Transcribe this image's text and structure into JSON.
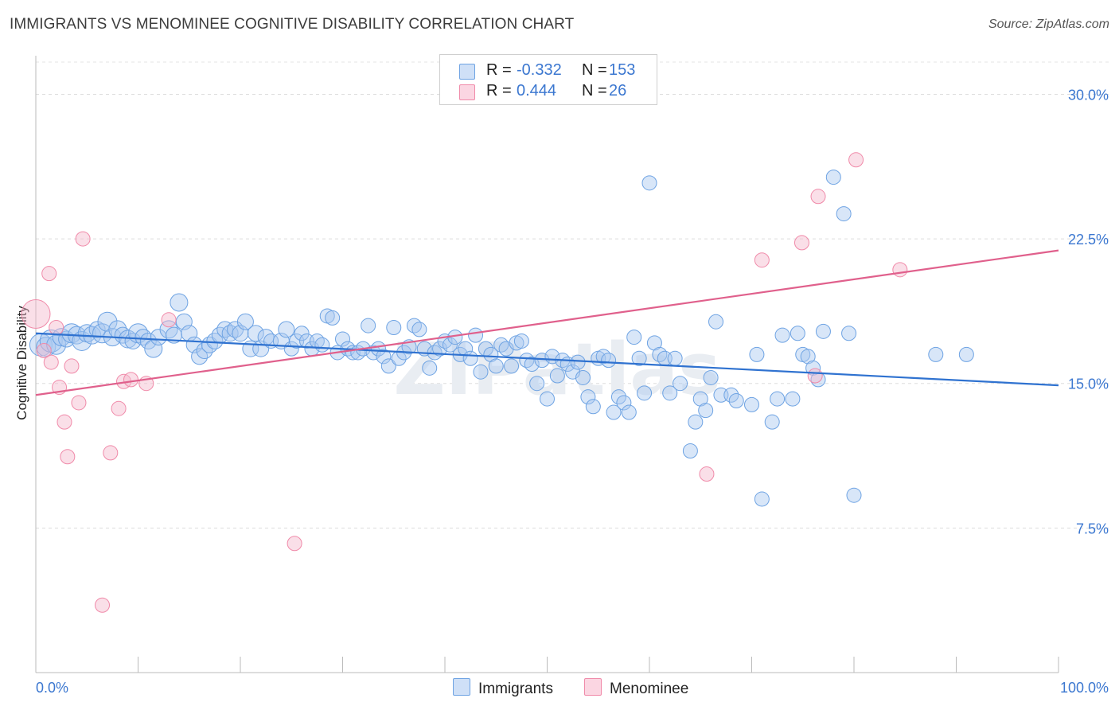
{
  "title": "IMMIGRANTS VS MENOMINEE COGNITIVE DISABILITY CORRELATION CHART",
  "source": "Source: ZipAtlas.com",
  "watermark": "ZIPatlas",
  "stats": [
    {
      "r_label": "R =",
      "r": "-0.332",
      "n_label": "N =",
      "n": "153",
      "color": "#a8c8f0"
    },
    {
      "r_label": "R =",
      "r": "0.444",
      "n_label": "N =",
      "n": "26",
      "color": "#f5b8cb"
    }
  ],
  "legend": [
    {
      "label": "Immigrants",
      "color": "#a8c8f0"
    },
    {
      "label": "Menominee",
      "color": "#f5b8cb"
    }
  ],
  "chart_data": {
    "type": "scatter",
    "title": "IMMIGRANTS VS MENOMINEE COGNITIVE DISABILITY CORRELATION CHART",
    "xlabel": "",
    "ylabel": "Cognitive Disability",
    "xlim": [
      0,
      100
    ],
    "ylim": [
      0,
      32
    ],
    "x_tick_labels": [
      "0.0%",
      "100.0%"
    ],
    "y_ticks": [
      7.5,
      15.0,
      22.5,
      30.0
    ],
    "y_tick_labels": [
      "7.5%",
      "15.0%",
      "22.5%",
      "30.0%"
    ],
    "grid": "horizontal dashed",
    "legend_position": "bottom-center",
    "series": [
      {
        "name": "Immigrants",
        "color": "#6ea3e3",
        "trend": {
          "x0": 0,
          "y0": 17.6,
          "x1": 100,
          "y1": 14.9,
          "color": "#2f72d0"
        },
        "points": [
          [
            0.5,
            17.0,
            14
          ],
          [
            1,
            16.9,
            12
          ],
          [
            1.5,
            17.2,
            14
          ],
          [
            2,
            17.0,
            12
          ],
          [
            2.5,
            17.4,
            11
          ],
          [
            3,
            17.3,
            10
          ],
          [
            3.5,
            17.6,
            12
          ],
          [
            4,
            17.5,
            11
          ],
          [
            4.5,
            17.2,
            12
          ],
          [
            5,
            17.6,
            11
          ],
          [
            5.5,
            17.5,
            11
          ],
          [
            6,
            17.8,
            10
          ],
          [
            6.5,
            17.6,
            12
          ],
          [
            7,
            18.2,
            12
          ],
          [
            7.5,
            17.4,
            11
          ],
          [
            8,
            17.8,
            11
          ],
          [
            8.5,
            17.5,
            10
          ],
          [
            9,
            17.3,
            11
          ],
          [
            9.5,
            17.2,
            10
          ],
          [
            10,
            17.6,
            12
          ],
          [
            10.5,
            17.4,
            10
          ],
          [
            11,
            17.2,
            10
          ],
          [
            11.5,
            16.8,
            11
          ],
          [
            12,
            17.4,
            10
          ],
          [
            13,
            17.8,
            11
          ],
          [
            13.5,
            17.5,
            10
          ],
          [
            14,
            19.2,
            11
          ],
          [
            14.5,
            18.2,
            10
          ],
          [
            15,
            17.6,
            10
          ],
          [
            15.5,
            17.0,
            10
          ],
          [
            16,
            16.4,
            10
          ],
          [
            16.5,
            16.7,
            10
          ],
          [
            17,
            17.0,
            10
          ],
          [
            17.5,
            17.2,
            10
          ],
          [
            18,
            17.5,
            10
          ],
          [
            18.5,
            17.8,
            10
          ],
          [
            19,
            17.6,
            10
          ],
          [
            19.5,
            17.8,
            10
          ],
          [
            20,
            17.6,
            10
          ],
          [
            20.5,
            18.2,
            10
          ],
          [
            21,
            16.8,
            10
          ],
          [
            21.5,
            17.6,
            10
          ],
          [
            22,
            16.8,
            10
          ],
          [
            22.5,
            17.4,
            10
          ],
          [
            23,
            17.2,
            9
          ],
          [
            24,
            17.2,
            10
          ],
          [
            24.5,
            17.8,
            10
          ],
          [
            25,
            16.8,
            9
          ],
          [
            25.5,
            17.2,
            9
          ],
          [
            26,
            17.6,
            9
          ],
          [
            26.5,
            17.2,
            9
          ],
          [
            27,
            16.8,
            9
          ],
          [
            27.5,
            17.2,
            9
          ],
          [
            28,
            17.0,
            9
          ],
          [
            28.5,
            18.5,
            9
          ],
          [
            29,
            18.4,
            9
          ],
          [
            29.5,
            16.6,
            9
          ],
          [
            30,
            17.3,
            9
          ],
          [
            30.5,
            16.8,
            9
          ],
          [
            31,
            16.6,
            9
          ],
          [
            31.5,
            16.6,
            9
          ],
          [
            32,
            16.8,
            9
          ],
          [
            32.5,
            18.0,
            9
          ],
          [
            33,
            16.6,
            9
          ],
          [
            33.5,
            16.8,
            9
          ],
          [
            34,
            16.4,
            9
          ],
          [
            34.5,
            15.9,
            9
          ],
          [
            35,
            17.9,
            9
          ],
          [
            35.5,
            16.3,
            9
          ],
          [
            36,
            16.6,
            9
          ],
          [
            36.5,
            16.9,
            9
          ],
          [
            37,
            18.0,
            9
          ],
          [
            37.5,
            17.8,
            9
          ],
          [
            38,
            16.8,
            9
          ],
          [
            38.5,
            15.8,
            9
          ],
          [
            39,
            16.6,
            9
          ],
          [
            39.5,
            16.8,
            9
          ],
          [
            40,
            17.2,
            9
          ],
          [
            40.5,
            17.0,
            9
          ],
          [
            41,
            17.4,
            9
          ],
          [
            41.5,
            16.5,
            9
          ],
          [
            42,
            16.8,
            9
          ],
          [
            42.5,
            16.3,
            9
          ],
          [
            43,
            17.5,
            9
          ],
          [
            43.5,
            15.6,
            9
          ],
          [
            44,
            16.8,
            9
          ],
          [
            44.5,
            16.5,
            9
          ],
          [
            45,
            15.9,
            9
          ],
          [
            45.5,
            17.0,
            9
          ],
          [
            46,
            16.8,
            9
          ],
          [
            46.5,
            15.9,
            9
          ],
          [
            47,
            17.1,
            9
          ],
          [
            47.5,
            17.2,
            9
          ],
          [
            48,
            16.2,
            9
          ],
          [
            48.5,
            16.0,
            9
          ],
          [
            49,
            15.0,
            9
          ],
          [
            49.5,
            16.2,
            9
          ],
          [
            50,
            14.2,
            9
          ],
          [
            50.5,
            16.4,
            9
          ],
          [
            51,
            15.4,
            9
          ],
          [
            51.5,
            16.2,
            9
          ],
          [
            52,
            16.0,
            9
          ],
          [
            52.5,
            15.6,
            9
          ],
          [
            53,
            16.1,
            9
          ],
          [
            53.5,
            15.3,
            9
          ],
          [
            54,
            14.3,
            9
          ],
          [
            54.5,
            13.8,
            9
          ],
          [
            55,
            16.3,
            9
          ],
          [
            55.5,
            16.4,
            9
          ],
          [
            56,
            16.2,
            9
          ],
          [
            56.5,
            13.5,
            9
          ],
          [
            57,
            14.3,
            9
          ],
          [
            57.5,
            14.0,
            9
          ],
          [
            58,
            13.5,
            9
          ],
          [
            58.5,
            17.4,
            9
          ],
          [
            59,
            16.3,
            9
          ],
          [
            59.5,
            14.5,
            9
          ],
          [
            60,
            25.4,
            9
          ],
          [
            60.5,
            17.1,
            9
          ],
          [
            61,
            16.5,
            9
          ],
          [
            61.5,
            16.3,
            9
          ],
          [
            62,
            14.5,
            9
          ],
          [
            62.5,
            16.3,
            9
          ],
          [
            63,
            15.0,
            9
          ],
          [
            64,
            11.5,
            9
          ],
          [
            64.5,
            13.0,
            9
          ],
          [
            65,
            14.2,
            9
          ],
          [
            65.5,
            13.6,
            9
          ],
          [
            66,
            15.3,
            9
          ],
          [
            66.5,
            18.2,
            9
          ],
          [
            67,
            14.4,
            9
          ],
          [
            68,
            14.4,
            9
          ],
          [
            68.5,
            14.1,
            9
          ],
          [
            70,
            13.9,
            9
          ],
          [
            70.5,
            16.5,
            9
          ],
          [
            71,
            9.0,
            9
          ],
          [
            72,
            13.0,
            9
          ],
          [
            72.5,
            14.2,
            9
          ],
          [
            73,
            17.5,
            9
          ],
          [
            74,
            14.2,
            9
          ],
          [
            74.5,
            17.6,
            9
          ],
          [
            75,
            16.5,
            9
          ],
          [
            75.5,
            16.4,
            9
          ],
          [
            76,
            15.8,
            9
          ],
          [
            76.5,
            15.2,
            9
          ],
          [
            77,
            17.7,
            9
          ],
          [
            78,
            25.7,
            9
          ],
          [
            79,
            23.8,
            9
          ],
          [
            79.5,
            17.6,
            9
          ],
          [
            80,
            9.2,
            9
          ],
          [
            88,
            16.5,
            9
          ],
          [
            91,
            16.5,
            9
          ]
        ]
      },
      {
        "name": "Menominee",
        "color": "#f08aa9",
        "trend": {
          "x0": 0,
          "y0": 14.4,
          "x1": 100,
          "y1": 21.9,
          "color": "#e0608c"
        },
        "points": [
          [
            0,
            18.6,
            18
          ],
          [
            0.8,
            16.7,
            9
          ],
          [
            1.3,
            20.7,
            9
          ],
          [
            1.5,
            16.1,
            9
          ],
          [
            2,
            17.9,
            9
          ],
          [
            2.3,
            14.8,
            9
          ],
          [
            2.8,
            13.0,
            9
          ],
          [
            3.1,
            11.2,
            9
          ],
          [
            3.5,
            15.9,
            9
          ],
          [
            4.2,
            14.0,
            9
          ],
          [
            4.6,
            22.5,
            9
          ],
          [
            7.3,
            11.4,
            9
          ],
          [
            8.1,
            13.7,
            9
          ],
          [
            8.6,
            15.1,
            9
          ],
          [
            9.3,
            15.2,
            9
          ],
          [
            10.8,
            15.0,
            9
          ],
          [
            13.0,
            18.3,
            9
          ],
          [
            25.3,
            6.7,
            9
          ],
          [
            65.6,
            10.3,
            9
          ],
          [
            71.0,
            21.4,
            9
          ],
          [
            74.9,
            22.3,
            9
          ],
          [
            76.2,
            15.4,
            9
          ],
          [
            76.5,
            24.7,
            9
          ],
          [
            80.2,
            26.6,
            9
          ],
          [
            84.5,
            20.9,
            9
          ],
          [
            6.5,
            3.5,
            9
          ]
        ]
      }
    ]
  }
}
